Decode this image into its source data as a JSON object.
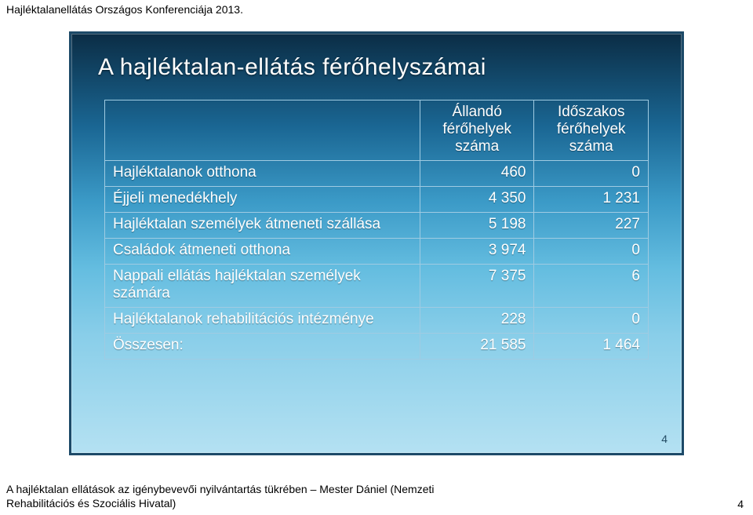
{
  "header_text": "Hajléktalanellátás Országos Konferenciája 2013.",
  "header_fontsize": 14,
  "header_color": "#000000",
  "slide": {
    "title": "A hajléktalan-ellátás férőhelyszámai",
    "title_fontsize": 30,
    "title_color": "#ffffff",
    "border_color": "#1d4a68",
    "gradient_top": "#0b2d45",
    "gradient_bottom": "#b4e1f2",
    "number": "4",
    "number_fontsize": 14,
    "number_color": "#234b63"
  },
  "table": {
    "border_color": "#9fcbe2",
    "text_color": "#ffffff",
    "fontsize": 19,
    "col_widths_pct": [
      58,
      21,
      21
    ],
    "headers": [
      "",
      "Állandó férőhelyek száma",
      "Időszakos férőhelyek száma"
    ],
    "rows": [
      {
        "label": "Hajléktalanok otthona",
        "c1": "460",
        "c2": "0"
      },
      {
        "label": "Éjjeli menedékhely",
        "c1": "4 350",
        "c2": "1 231"
      },
      {
        "label": "Hajléktalan személyek átmeneti szállása",
        "c1": "5 198",
        "c2": "227"
      },
      {
        "label": "Családok átmeneti otthona",
        "c1": "3 974",
        "c2": "0"
      },
      {
        "label": "Nappali ellátás hajléktalan személyek számára",
        "c1": "7 375",
        "c2": "6"
      },
      {
        "label": "Hajléktalanok rehabilitációs intézménye",
        "c1": "228",
        "c2": "0"
      },
      {
        "label": "Összesen:",
        "c1": "21 585",
        "c2": "1 464"
      }
    ]
  },
  "footer": {
    "line1": "A hajléktalan ellátások az igénybevevői nyilvántartás tükrében – Mester Dániel (Nemzeti",
    "line2": "Rehabilitációs és Szociális Hivatal)",
    "fontsize": 14,
    "color": "#000000",
    "page_number": "4"
  }
}
